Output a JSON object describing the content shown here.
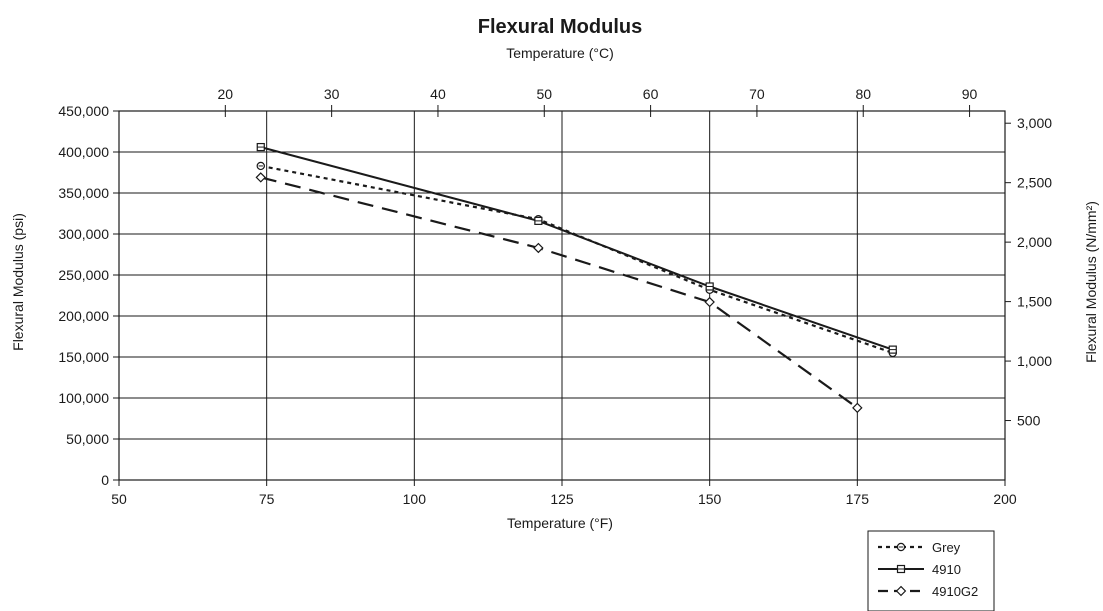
{
  "chart_data": {
    "type": "line",
    "title": "Flexural Modulus",
    "xlabel": "Temperature (°F)",
    "x2label": "Temperature (°C)",
    "ylabel": "Flexural Modulus (psi)",
    "y2label": "Flexural Modulus (N/mm²)",
    "xlim": [
      50,
      200
    ],
    "ylim": [
      0,
      450000
    ],
    "x_ticks": [
      50,
      75,
      100,
      125,
      150,
      175,
      200
    ],
    "x_tick_labels": [
      "50",
      "75",
      "100",
      "125",
      "150",
      "175",
      "200"
    ],
    "y_ticks": [
      0,
      50000,
      100000,
      150000,
      200000,
      250000,
      300000,
      350000,
      400000,
      450000
    ],
    "y_tick_labels": [
      "0",
      "50,000",
      "100,000",
      "150,000",
      "200,000",
      "250,000",
      "300,000",
      "350,000",
      "400,000",
      "450,000"
    ],
    "x2_ticks_c": [
      20,
      30,
      40,
      50,
      60,
      70,
      80,
      90
    ],
    "x2_tick_labels": [
      "20",
      "30",
      "40",
      "50",
      "60",
      "70",
      "80",
      "90"
    ],
    "y2_ticks": [
      500,
      1000,
      1500,
      2000,
      2500,
      3000
    ],
    "y2_tick_labels": [
      "500",
      "1,000",
      "1,500",
      "2,000",
      "2,500",
      "3,000"
    ],
    "grid": true,
    "legend_position": "bottom-right, below plot",
    "series": [
      {
        "name": "Grey",
        "style": "dotted",
        "marker": "circle",
        "color": "#1a1a1a",
        "x": [
          74,
          121,
          150,
          181
        ],
        "y": [
          383000,
          318000,
          232000,
          155000
        ]
      },
      {
        "name": "4910",
        "style": "solid",
        "marker": "square",
        "color": "#1a1a1a",
        "x": [
          74,
          121,
          150,
          181
        ],
        "y": [
          406000,
          316000,
          236000,
          159000
        ]
      },
      {
        "name": "4910G2",
        "style": "dashed",
        "marker": "diamond",
        "color": "#1a1a1a",
        "x": [
          74,
          121,
          150,
          175
        ],
        "y": [
          369000,
          283000,
          217000,
          88000
        ]
      }
    ]
  }
}
